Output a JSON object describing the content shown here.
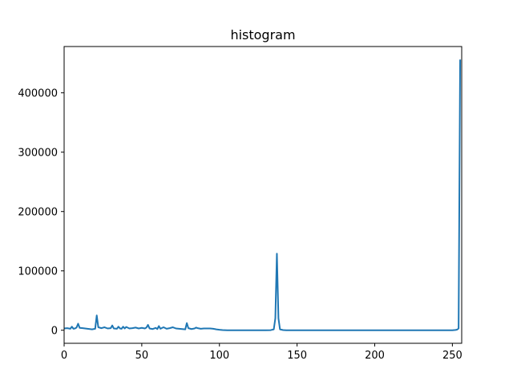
{
  "colors": {
    "background": "#ffffff",
    "line": "#1f77b4",
    "axis": "#000000"
  },
  "chart_data": {
    "type": "line",
    "title": "histogram",
    "xlabel": "",
    "ylabel": "",
    "xlim": [
      0,
      256
    ],
    "ylim": [
      -22000,
      478000
    ],
    "xticks": [
      0,
      50,
      100,
      150,
      200,
      250
    ],
    "xtick_labels": [
      "0",
      "50",
      "100",
      "150",
      "200",
      "250"
    ],
    "yticks": [
      0,
      100000,
      200000,
      300000,
      400000
    ],
    "ytick_labels": [
      "0",
      "100000",
      "200000",
      "300000",
      "400000"
    ],
    "grid": false,
    "series": [
      {
        "name": "histogram",
        "points": [
          [
            0,
            3000
          ],
          [
            2,
            3500
          ],
          [
            4,
            2500
          ],
          [
            5,
            6000
          ],
          [
            6,
            2500
          ],
          [
            7,
            3000
          ],
          [
            8,
            4500
          ],
          [
            9,
            11000
          ],
          [
            10,
            4000
          ],
          [
            12,
            3500
          ],
          [
            15,
            2500
          ],
          [
            18,
            1500
          ],
          [
            20,
            2500
          ],
          [
            21,
            25000
          ],
          [
            22,
            5000
          ],
          [
            24,
            3500
          ],
          [
            26,
            5000
          ],
          [
            28,
            3000
          ],
          [
            30,
            3500
          ],
          [
            31,
            8000
          ],
          [
            32,
            3000
          ],
          [
            34,
            2500
          ],
          [
            35,
            6000
          ],
          [
            36,
            3000
          ],
          [
            37,
            2500
          ],
          [
            38,
            6000
          ],
          [
            39,
            3000
          ],
          [
            40,
            5500
          ],
          [
            42,
            3000
          ],
          [
            44,
            3500
          ],
          [
            46,
            4500
          ],
          [
            48,
            3000
          ],
          [
            50,
            4000
          ],
          [
            52,
            3000
          ],
          [
            53,
            4500
          ],
          [
            54,
            9000
          ],
          [
            55,
            3000
          ],
          [
            57,
            2000
          ],
          [
            59,
            4000
          ],
          [
            60,
            2000
          ],
          [
            61,
            7000
          ],
          [
            62,
            2500
          ],
          [
            64,
            5000
          ],
          [
            66,
            2500
          ],
          [
            68,
            3500
          ],
          [
            70,
            5000
          ],
          [
            72,
            3000
          ],
          [
            74,
            2500
          ],
          [
            76,
            2000
          ],
          [
            78,
            1500
          ],
          [
            79,
            12000
          ],
          [
            80,
            3500
          ],
          [
            82,
            2000
          ],
          [
            84,
            3000
          ],
          [
            85,
            4500
          ],
          [
            86,
            3500
          ],
          [
            88,
            2500
          ],
          [
            90,
            3000
          ],
          [
            94,
            3000
          ],
          [
            96,
            2500
          ],
          [
            98,
            1500
          ],
          [
            100,
            800
          ],
          [
            102,
            300
          ],
          [
            105,
            0
          ],
          [
            110,
            0
          ],
          [
            120,
            0
          ],
          [
            130,
            0
          ],
          [
            133,
            200
          ],
          [
            135,
            1500
          ],
          [
            136,
            20000
          ],
          [
            137,
            129000
          ],
          [
            138,
            20000
          ],
          [
            139,
            1500
          ],
          [
            141,
            300
          ],
          [
            143,
            0
          ],
          [
            150,
            0
          ],
          [
            160,
            0
          ],
          [
            180,
            0
          ],
          [
            200,
            0
          ],
          [
            220,
            0
          ],
          [
            240,
            0
          ],
          [
            250,
            0
          ],
          [
            252,
            500
          ],
          [
            253,
            1000
          ],
          [
            254,
            3000
          ],
          [
            255,
            456000
          ]
        ]
      }
    ]
  }
}
